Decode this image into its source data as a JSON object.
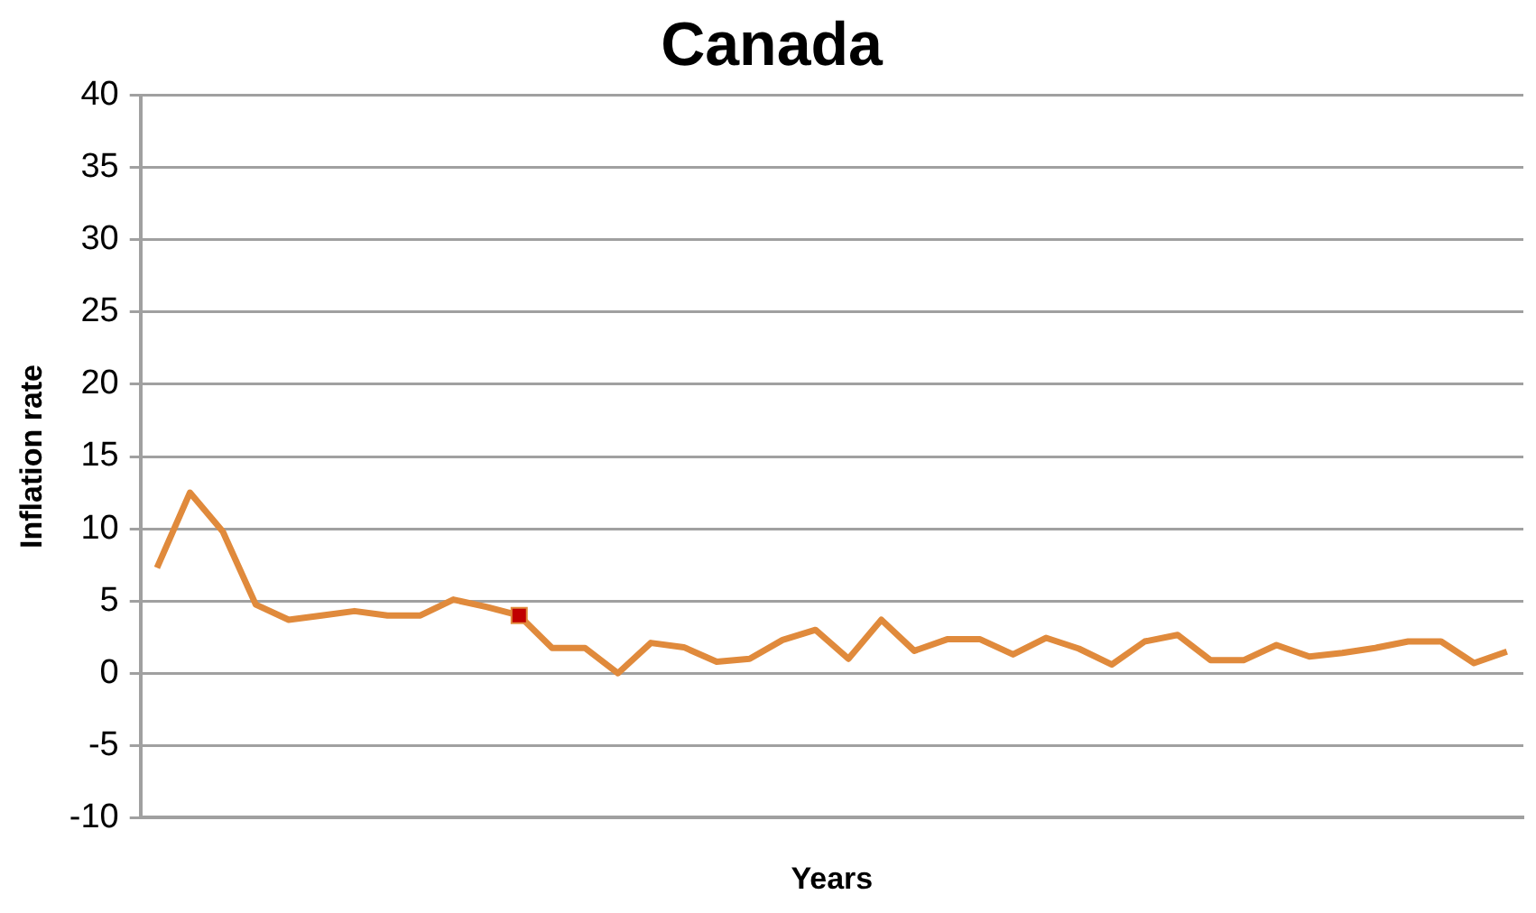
{
  "chart_data": {
    "type": "line",
    "title": "Canada",
    "xlabel": "Years",
    "ylabel": "Inflation rate",
    "categories": [
      null,
      null,
      null,
      null,
      null,
      null,
      null,
      null,
      null,
      null,
      null,
      null,
      null,
      null,
      null,
      null,
      null,
      null,
      null,
      null,
      null,
      null,
      null,
      null,
      null,
      null,
      null,
      null,
      null,
      null,
      null,
      null,
      null,
      null,
      null,
      null,
      null,
      null,
      null,
      null,
      null,
      null
    ],
    "series": [
      {
        "color": "#e08a3c",
        "marker": "none",
        "values": [
          7.3,
          12.5,
          9.8,
          4.75,
          3.7,
          4.0,
          4.3,
          4.0,
          4.0,
          5.1,
          4.6,
          4.0,
          1.75,
          1.75,
          0,
          2.1,
          1.8,
          0.8,
          1.0,
          2.3,
          3.0,
          1.0,
          3.7,
          1.55,
          2.35,
          2.35,
          1.3,
          2.45,
          1.7,
          0.6,
          2.2,
          2.65,
          0.9,
          0.9,
          1.95,
          1.15,
          1.4,
          1.75,
          2.2,
          2.2,
          0.7,
          1.5
        ]
      },
      {
        "type": "scatter",
        "color": "#c00000",
        "marker": "square",
        "values": [
          null,
          null,
          null,
          null,
          null,
          null,
          null,
          null,
          null,
          null,
          null,
          4.0,
          null,
          null,
          null,
          null,
          null,
          null,
          null,
          null,
          null,
          null,
          null,
          null,
          null,
          null,
          null,
          null,
          null,
          null,
          null,
          null,
          null,
          null,
          null,
          null,
          null,
          null,
          null,
          null,
          null,
          null
        ]
      }
    ],
    "ylim": [
      -10,
      40
    ],
    "yticks": [
      -10,
      -5,
      0,
      5,
      10,
      15,
      20,
      25,
      30,
      35,
      40
    ],
    "grid": "y",
    "legend": false,
    "line_style": "solid"
  }
}
